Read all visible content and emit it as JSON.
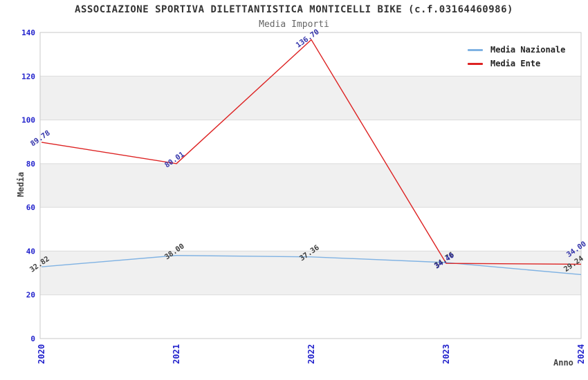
{
  "header": {
    "title": "ASSOCIAZIONE SPORTIVA DILETTANTISTICA MONTICELLI BIKE (c.f.03164460986)",
    "subtitle": "Media Importi"
  },
  "chart_data": {
    "type": "line",
    "x": [
      "2020",
      "2021",
      "2022",
      "2023",
      "2024"
    ],
    "series": [
      {
        "name": "Media Nazionale",
        "color": "#7fb2e3",
        "label_color": "#3d3d3d",
        "values": [
          32.82,
          38.0,
          37.36,
          34.76,
          29.24
        ],
        "label_offsets": [
          [
            12,
            -10
          ],
          [
            12,
            -12
          ],
          [
            12,
            -12
          ],
          [
            12,
            -10
          ],
          [
            4,
            -22
          ]
        ]
      },
      {
        "name": "Media Ente",
        "color": "#dd2222",
        "label_color": "#3333aa",
        "values": [
          89.78,
          80.01,
          136.7,
          34.4,
          34.0
        ],
        "label_offsets": [
          [
            13,
            -12
          ],
          [
            12,
            -12
          ],
          [
            12,
            -10
          ],
          [
            12,
            -10
          ],
          [
            8,
            -28
          ]
        ]
      }
    ],
    "xlabel": "Anno",
    "ylabel": "Media",
    "ylim": [
      0,
      140
    ],
    "yticks": [
      0,
      20,
      40,
      60,
      80,
      100,
      120,
      140
    ],
    "grid": true,
    "legend_position": "top-right",
    "band_color": "#f0f0f0",
    "grid_color": "#dcdcdc",
    "border_color": "#c9c9c9",
    "tick_color": "#2222cc",
    "label_rotation_deg": -35
  }
}
